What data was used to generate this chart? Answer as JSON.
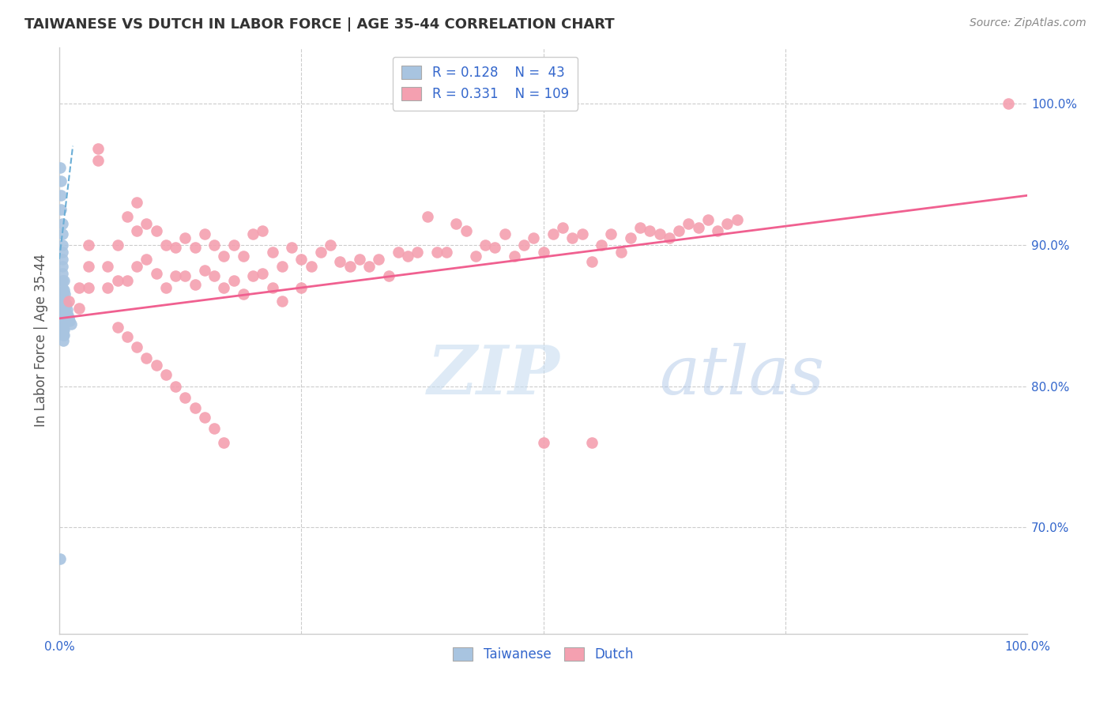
{
  "title": "TAIWANESE VS DUTCH IN LABOR FORCE | AGE 35-44 CORRELATION CHART",
  "source": "Source: ZipAtlas.com",
  "ylabel": "In Labor Force | Age 35-44",
  "ylabel_right_ticks": [
    "70.0%",
    "80.0%",
    "90.0%",
    "100.0%"
  ],
  "ylabel_right_values": [
    0.7,
    0.8,
    0.9,
    1.0
  ],
  "taiwanese_color": "#a8c4e0",
  "dutch_color": "#f4a0b0",
  "taiwanese_line_color": "#6baed6",
  "dutch_line_color": "#f06090",
  "R_taiwanese": 0.128,
  "N_taiwanese": 43,
  "R_dutch": 0.331,
  "N_dutch": 109,
  "taiwanese_x": [
    0.001,
    0.002,
    0.002,
    0.002,
    0.003,
    0.003,
    0.003,
    0.003,
    0.003,
    0.003,
    0.003,
    0.003,
    0.003,
    0.004,
    0.004,
    0.004,
    0.004,
    0.004,
    0.004,
    0.004,
    0.004,
    0.004,
    0.005,
    0.005,
    0.005,
    0.005,
    0.005,
    0.005,
    0.005,
    0.005,
    0.006,
    0.006,
    0.006,
    0.007,
    0.007,
    0.007,
    0.008,
    0.008,
    0.009,
    0.01,
    0.011,
    0.012,
    0.001
  ],
  "taiwanese_y": [
    0.955,
    0.945,
    0.935,
    0.925,
    0.915,
    0.908,
    0.9,
    0.895,
    0.89,
    0.885,
    0.88,
    0.875,
    0.87,
    0.865,
    0.86,
    0.856,
    0.852,
    0.848,
    0.844,
    0.84,
    0.836,
    0.832,
    0.875,
    0.868,
    0.862,
    0.856,
    0.85,
    0.845,
    0.84,
    0.836,
    0.865,
    0.858,
    0.852,
    0.858,
    0.852,
    0.846,
    0.854,
    0.848,
    0.85,
    0.848,
    0.846,
    0.844,
    0.678
  ],
  "dutch_x": [
    0.01,
    0.02,
    0.02,
    0.03,
    0.03,
    0.03,
    0.04,
    0.04,
    0.05,
    0.05,
    0.06,
    0.06,
    0.07,
    0.07,
    0.08,
    0.08,
    0.08,
    0.09,
    0.09,
    0.1,
    0.1,
    0.11,
    0.11,
    0.12,
    0.12,
    0.13,
    0.13,
    0.14,
    0.14,
    0.15,
    0.15,
    0.16,
    0.16,
    0.17,
    0.17,
    0.18,
    0.18,
    0.19,
    0.19,
    0.2,
    0.2,
    0.21,
    0.21,
    0.22,
    0.22,
    0.23,
    0.23,
    0.24,
    0.25,
    0.25,
    0.26,
    0.27,
    0.28,
    0.29,
    0.3,
    0.31,
    0.32,
    0.33,
    0.34,
    0.35,
    0.36,
    0.37,
    0.38,
    0.39,
    0.4,
    0.41,
    0.42,
    0.43,
    0.44,
    0.45,
    0.46,
    0.47,
    0.48,
    0.49,
    0.5,
    0.51,
    0.52,
    0.53,
    0.54,
    0.55,
    0.56,
    0.57,
    0.58,
    0.59,
    0.6,
    0.61,
    0.62,
    0.63,
    0.64,
    0.65,
    0.66,
    0.67,
    0.68,
    0.69,
    0.7,
    0.98,
    0.06,
    0.07,
    0.08,
    0.09,
    0.1,
    0.11,
    0.12,
    0.13,
    0.14,
    0.15,
    0.16,
    0.17,
    0.5,
    0.55
  ],
  "dutch_y": [
    0.86,
    0.87,
    0.855,
    0.9,
    0.885,
    0.87,
    0.968,
    0.96,
    0.885,
    0.87,
    0.9,
    0.875,
    0.92,
    0.875,
    0.93,
    0.91,
    0.885,
    0.915,
    0.89,
    0.91,
    0.88,
    0.9,
    0.87,
    0.898,
    0.878,
    0.905,
    0.878,
    0.898,
    0.872,
    0.908,
    0.882,
    0.9,
    0.878,
    0.892,
    0.87,
    0.9,
    0.875,
    0.892,
    0.865,
    0.908,
    0.878,
    0.91,
    0.88,
    0.895,
    0.87,
    0.885,
    0.86,
    0.898,
    0.89,
    0.87,
    0.885,
    0.895,
    0.9,
    0.888,
    0.885,
    0.89,
    0.885,
    0.89,
    0.878,
    0.895,
    0.892,
    0.895,
    0.92,
    0.895,
    0.895,
    0.915,
    0.91,
    0.892,
    0.9,
    0.898,
    0.908,
    0.892,
    0.9,
    0.905,
    0.895,
    0.908,
    0.912,
    0.905,
    0.908,
    0.888,
    0.9,
    0.908,
    0.895,
    0.905,
    0.912,
    0.91,
    0.908,
    0.905,
    0.91,
    0.915,
    0.912,
    0.918,
    0.91,
    0.915,
    0.918,
    1.0,
    0.842,
    0.835,
    0.828,
    0.82,
    0.815,
    0.808,
    0.8,
    0.792,
    0.785,
    0.778,
    0.77,
    0.76,
    0.76,
    0.76
  ],
  "xlim": [
    0.0,
    1.0
  ],
  "ylim": [
    0.625,
    1.04
  ],
  "dutch_trend_x0": 0.0,
  "dutch_trend_y0": 0.848,
  "dutch_trend_x1": 1.0,
  "dutch_trend_y1": 0.935,
  "taiwanese_trend_x0": 0.0,
  "taiwanese_trend_y0": 0.89,
  "taiwanese_trend_x1": 0.014,
  "taiwanese_trend_y1": 0.97
}
